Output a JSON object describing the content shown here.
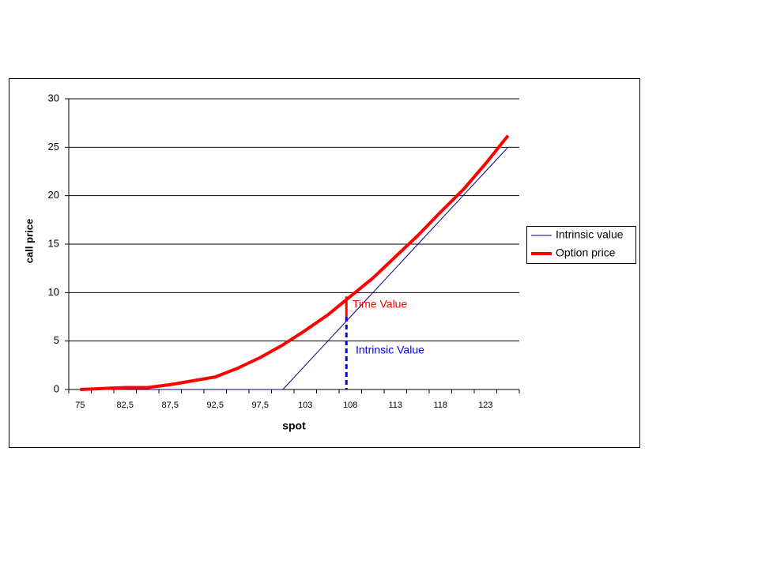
{
  "chart_data": {
    "type": "line",
    "y_label": "call price",
    "x_label": "spot",
    "categories": [
      "75",
      null,
      "82,5",
      null,
      "87,5",
      null,
      "92,5",
      null,
      "97,5",
      null,
      "103",
      null,
      "108",
      null,
      "113",
      null,
      "118",
      null,
      "123",
      null
    ],
    "series": [
      {
        "name": "Intrinsic value",
        "color": "#000080",
        "values": [
          0,
          0,
          0,
          0,
          0,
          0,
          0,
          0,
          0,
          0,
          2.5,
          5,
          7.5,
          10,
          12.5,
          15,
          17.5,
          20,
          22.5,
          25
        ]
      },
      {
        "name": "Option price",
        "color": "#ff0000",
        "values": [
          0,
          0.1,
          0.2,
          0.2,
          0.5,
          0.9,
          1.3,
          2.2,
          3.3,
          4.6,
          6.1,
          7.7,
          9.6,
          11.5,
          13.7,
          15.9,
          18.3,
          20.6,
          23.3,
          26.2
        ]
      }
    ],
    "annotations": [
      {
        "text": "Time Value",
        "color": "#ff0000"
      },
      {
        "text": "Intrinsic Value",
        "color": "#0000ff"
      }
    ],
    "ylim": [
      0,
      30
    ],
    "yticks": [
      0,
      5,
      10,
      15,
      20,
      25,
      30
    ],
    "grid": true,
    "legend": "right"
  }
}
